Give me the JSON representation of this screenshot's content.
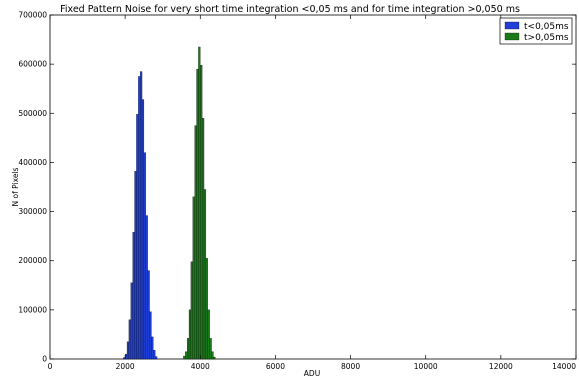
{
  "chart_data": {
    "type": "bar",
    "title": "Fixed Pattern Noise for very short time integration <0,05 ms and for time integration >0,050 ms",
    "xlabel": "ADU",
    "ylabel": "N of Pixels",
    "xlim": [
      0,
      14000
    ],
    "ylim": [
      0,
      700000
    ],
    "xticks": [
      "0",
      "2000",
      "4000",
      "6000",
      "8000",
      "10000",
      "12000",
      "14000"
    ],
    "yticks": [
      "0",
      "100000",
      "200000",
      "300000",
      "400000",
      "500000",
      "600000",
      "700000"
    ],
    "bin_width": 50,
    "legend_position": "top-right",
    "grid": false,
    "series": [
      {
        "name": "t<0,05ms",
        "color": "#1f3fd8",
        "x": [
          1950,
          2000,
          2050,
          2100,
          2150,
          2200,
          2250,
          2300,
          2350,
          2400,
          2450,
          2500,
          2550,
          2600,
          2650,
          2700,
          2750,
          2800
        ],
        "y": [
          3000,
          10000,
          35000,
          80000,
          155000,
          258000,
          382000,
          498000,
          575000,
          585000,
          528000,
          420000,
          292000,
          180000,
          96000,
          45000,
          18000,
          5000
        ]
      },
      {
        "name": "t>0,05ms",
        "color": "#1a7a1a",
        "x": [
          3550,
          3600,
          3650,
          3700,
          3750,
          3800,
          3850,
          3900,
          3950,
          4000,
          4050,
          4100,
          4150,
          4200,
          4250,
          4300,
          4350
        ],
        "y": [
          6000,
          15000,
          42000,
          100000,
          198000,
          330000,
          475000,
          590000,
          635000,
          598000,
          490000,
          345000,
          205000,
          100000,
          42000,
          15000,
          4000
        ]
      }
    ]
  }
}
